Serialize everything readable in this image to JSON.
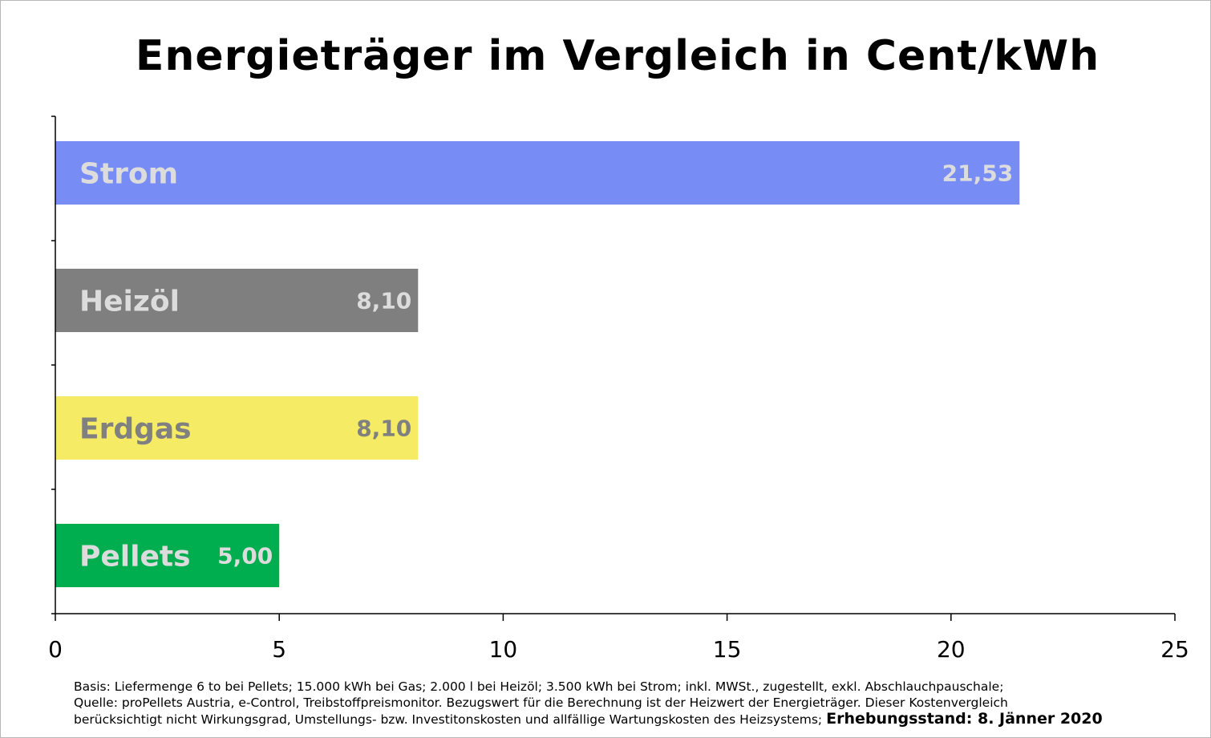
{
  "chart_data": {
    "type": "bar",
    "orientation": "horizontal",
    "title": "Energieträger im Vergleich in Cent/kWh",
    "categories": [
      "Strom",
      "Heizöl",
      "Erdgas",
      "Pellets"
    ],
    "values": [
      21.53,
      8.1,
      8.1,
      5.0
    ],
    "value_labels": [
      "21,53",
      "8,10",
      "8,10",
      "5,00"
    ],
    "colors": [
      "#788cf5",
      "#7f7f7f",
      "#f5eb64",
      "#00ae50"
    ],
    "label_colors": [
      "#dcdcdc",
      "#dcdcdc",
      "#808080",
      "#dcdcdc"
    ],
    "xlim": [
      0,
      25
    ],
    "xticks": [
      0,
      5,
      10,
      15,
      20,
      25
    ],
    "xlabel": "",
    "ylabel": "",
    "grid": false,
    "legend": "none"
  },
  "footnote": {
    "line1": "Basis: Liefermenge 6 to bei Pellets; 15.000 kWh bei Gas; 2.000 l bei Heizöl; 3.500 kWh bei Strom; inkl. MWSt., zugestellt, exkl. Abschlauchpauschale;",
    "line2": "Quelle: proPellets Austria, e-Control, Treibstoffpreismonitor. Bezugswert für die Berechnung ist der Heizwert der Energieträger. Dieser Kostenvergleich",
    "line3": "berücksichtigt nicht Wirkungsgrad, Umstellungs- bzw. Investitonskosten und allfällige Wartungskosten des Heizsystems;",
    "stamp": "Erhebungsstand: 8. Jänner 2020"
  }
}
